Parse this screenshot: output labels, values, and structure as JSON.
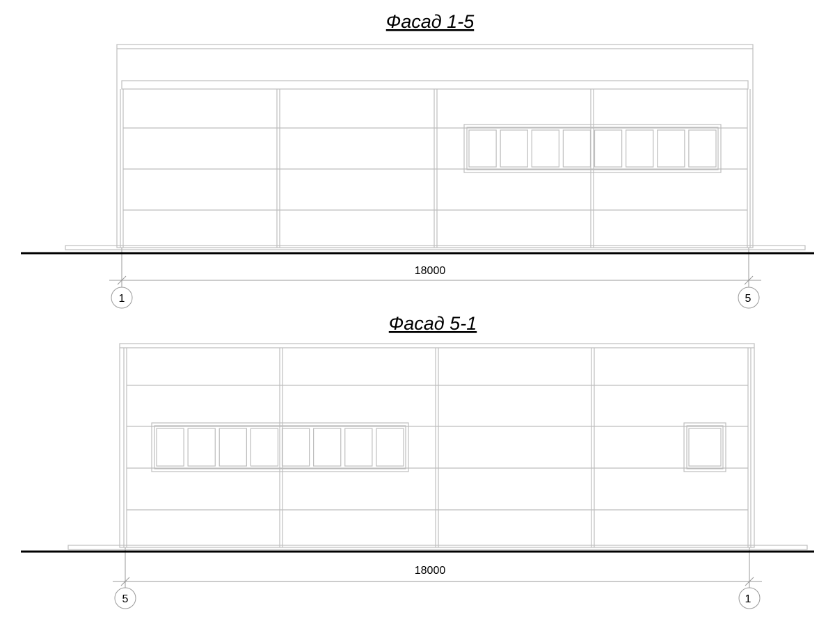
{
  "facades": [
    {
      "title": "Фасад 1-5",
      "dimension": "18000",
      "axis_left": "1",
      "axis_right": "5",
      "window_panes": 8,
      "extra_small_window": false
    },
    {
      "title": "Фасад 5-1",
      "dimension": "18000",
      "axis_left": "5",
      "axis_right": "1",
      "window_panes": 8,
      "extra_small_window": true
    }
  ],
  "colors": {
    "line": "#bdbdbd",
    "ground": "#000000",
    "text": "#000000"
  }
}
